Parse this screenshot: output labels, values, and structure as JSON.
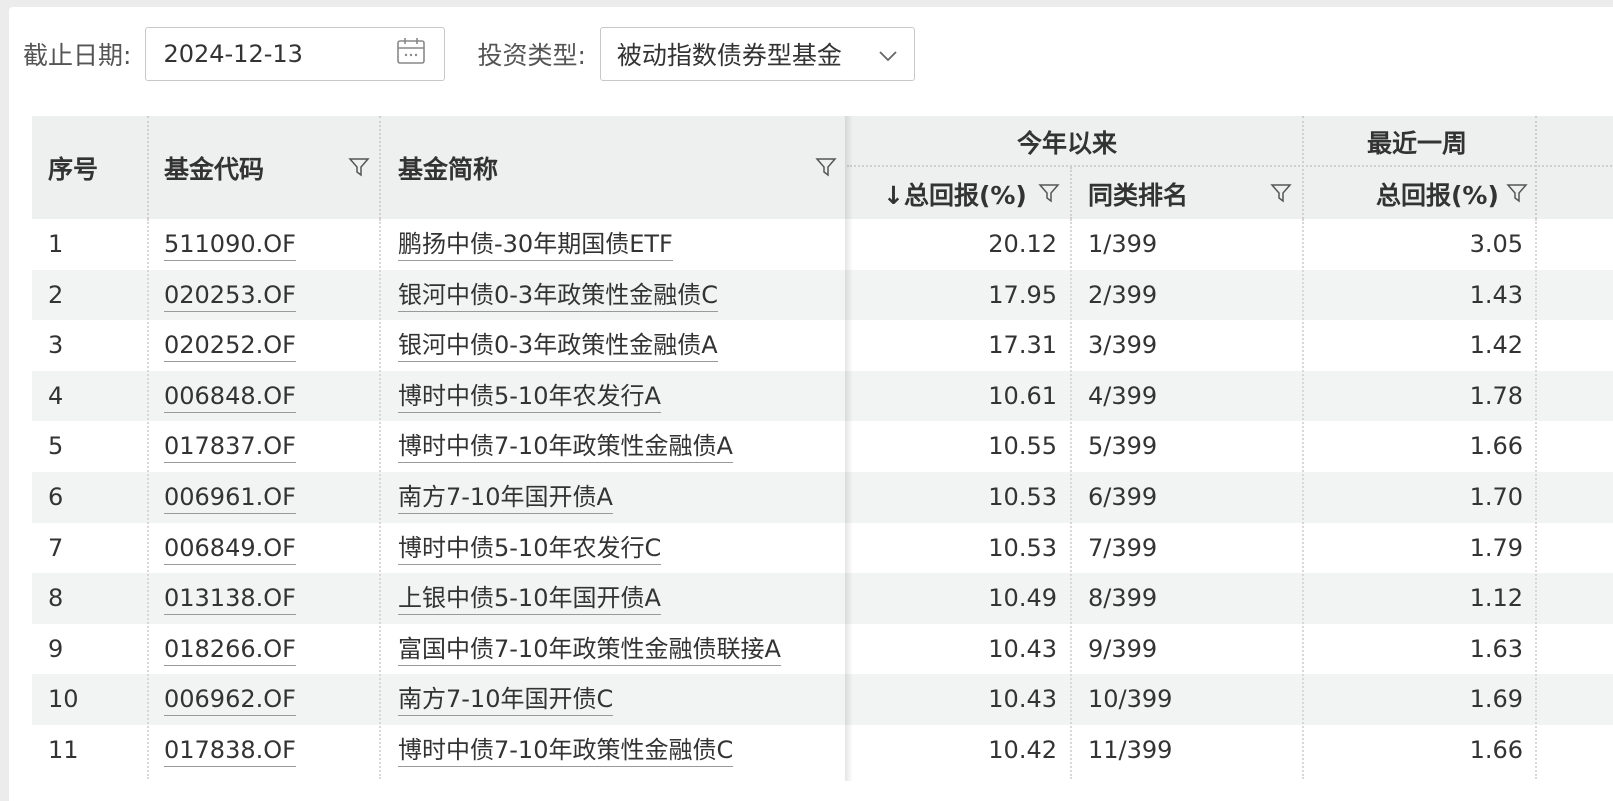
{
  "filters": {
    "date_label": "截止日期:",
    "date_value": "2024-12-13",
    "date_icon": "calendar-icon",
    "type_label": "投资类型:",
    "type_value": "被动指数债券型基金",
    "type_icon": "chevron-down-icon"
  },
  "table": {
    "headers": {
      "idx": "序号",
      "code": "基金代码",
      "name": "基金简称",
      "ytd_group": "今年以来",
      "week_group": "最近一周",
      "ytd_return": "↓总回报(%)",
      "ytd_rank": "同类排名",
      "week_return": "总回报(%)"
    },
    "filter_icon": "filter-funnel-icon",
    "rows": [
      {
        "idx": "1",
        "code": "511090.OF",
        "name": "鹏扬中债-30年期国债ETF",
        "ytd": "20.12",
        "rank": "1/399",
        "week": "3.05"
      },
      {
        "idx": "2",
        "code": "020253.OF",
        "name": "银河中债0-3年政策性金融债C",
        "ytd": "17.95",
        "rank": "2/399",
        "week": "1.43"
      },
      {
        "idx": "3",
        "code": "020252.OF",
        "name": "银河中债0-3年政策性金融债A",
        "ytd": "17.31",
        "rank": "3/399",
        "week": "1.42"
      },
      {
        "idx": "4",
        "code": "006848.OF",
        "name": "博时中债5-10年农发行A",
        "ytd": "10.61",
        "rank": "4/399",
        "week": "1.78"
      },
      {
        "idx": "5",
        "code": "017837.OF",
        "name": "博时中债7-10年政策性金融债A",
        "ytd": "10.55",
        "rank": "5/399",
        "week": "1.66"
      },
      {
        "idx": "6",
        "code": "006961.OF",
        "name": "南方7-10年国开债A",
        "ytd": "10.53",
        "rank": "6/399",
        "week": "1.70"
      },
      {
        "idx": "7",
        "code": "006849.OF",
        "name": "博时中债5-10年农发行C",
        "ytd": "10.53",
        "rank": "7/399",
        "week": "1.79"
      },
      {
        "idx": "8",
        "code": "013138.OF",
        "name": "上银中债5-10年国开债A",
        "ytd": "10.49",
        "rank": "8/399",
        "week": "1.12"
      },
      {
        "idx": "9",
        "code": "018266.OF",
        "name": "富国中债7-10年政策性金融债联接A",
        "ytd": "10.43",
        "rank": "9/399",
        "week": "1.63"
      },
      {
        "idx": "10",
        "code": "006962.OF",
        "name": "南方7-10年国开债C",
        "ytd": "10.43",
        "rank": "10/399",
        "week": "1.69"
      },
      {
        "idx": "11",
        "code": "017838.OF",
        "name": "博时中债7-10年政策性金融债C",
        "ytd": "10.42",
        "rank": "11/399",
        "week": "1.66"
      }
    ]
  }
}
